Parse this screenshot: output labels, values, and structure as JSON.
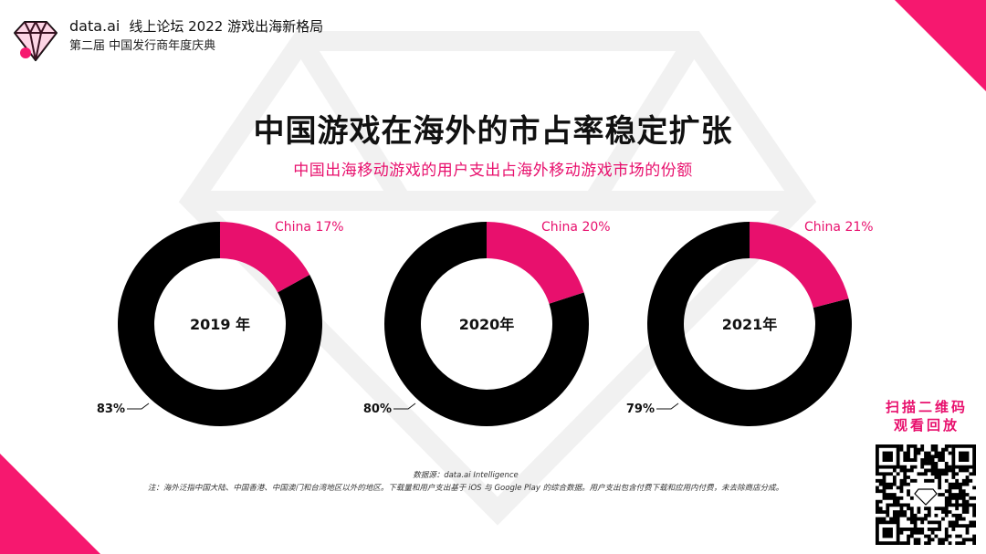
{
  "header": {
    "brand": "data.ai",
    "line1": "线上论坛  2022 游戏出海新格局",
    "line2": "第二届 中国发行商年度庆典"
  },
  "title": "中国游戏在海外的市占率稳定扩张",
  "subtitle": "中国出海移动游戏的用户支出占海外移动游戏市场的份额",
  "chart_data": [
    {
      "type": "pie",
      "center_label": "2019 年",
      "slices": [
        {
          "label": "China 17%",
          "value": 17
        },
        {
          "label": "83%",
          "value": 83
        }
      ]
    },
    {
      "type": "pie",
      "center_label": "2020年",
      "slices": [
        {
          "label": "China 20%",
          "value": 20
        },
        {
          "label": "80%",
          "value": 80
        }
      ]
    },
    {
      "type": "pie",
      "center_label": "2021年",
      "slices": [
        {
          "label": "China 21%",
          "value": 21
        },
        {
          "label": "79%",
          "value": 79
        }
      ]
    }
  ],
  "colors": {
    "accent": "#e8106d",
    "dark": "#000000"
  },
  "qr": {
    "label_line1": "扫描二维码",
    "label_line2": "观看回放"
  },
  "footer": {
    "source": "数据源：data.ai Intelligence",
    "note": "注：海外泛指中国大陆、中国香港、中国澳门和台湾地区以外的地区。下载量和用户支出基于 iOS 与 Google Play 的综合数据。用户支出包含付费下载和应用内付费，未去除商店分成。"
  }
}
